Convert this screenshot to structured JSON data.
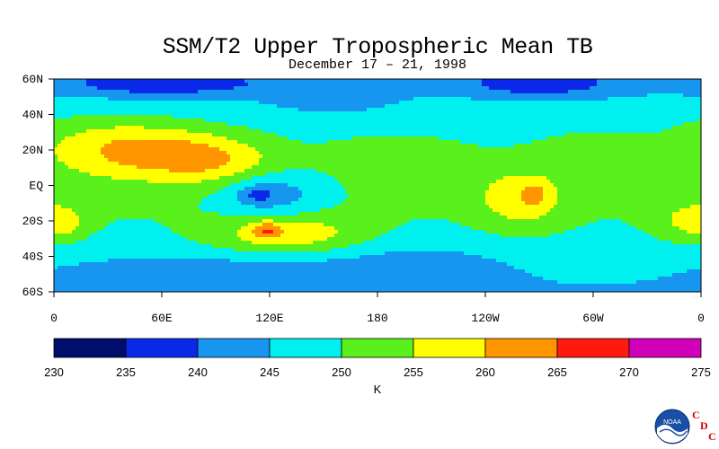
{
  "chart_data": {
    "type": "heatmap",
    "title": "SSM/T2 Upper Tropospheric Mean TB",
    "subtitle": "December 17 – 21, 1998",
    "y_ticks": [
      "60N",
      "40N",
      "20N",
      "EQ",
      "20S",
      "40S",
      "60S"
    ],
    "x_ticks": [
      "0",
      "60E",
      "120E",
      "180",
      "120W",
      "60W",
      "0"
    ],
    "colorbar": {
      "label": "K",
      "ticks": [
        230,
        235,
        240,
        245,
        250,
        255,
        260,
        265,
        270,
        275
      ],
      "bins": [
        {
          "min": 230,
          "max": 235,
          "color": "#000d6b"
        },
        {
          "min": 235,
          "max": 240,
          "color": "#0a28e8"
        },
        {
          "min": 240,
          "max": 245,
          "color": "#1796f0"
        },
        {
          "min": 245,
          "max": 250,
          "color": "#00f0f0"
        },
        {
          "min": 250,
          "max": 255,
          "color": "#5af01c"
        },
        {
          "min": 255,
          "max": 260,
          "color": "#ffff00"
        },
        {
          "min": 260,
          "max": 265,
          "color": "#ff9600"
        },
        {
          "min": 265,
          "max": 270,
          "color": "#ff1a10"
        },
        {
          "min": 270,
          "max": 275,
          "color": "#d000b8"
        }
      ]
    },
    "xlim": [
      0,
      360
    ],
    "ylim": [
      -60,
      60
    ]
  },
  "logo": {
    "letters": [
      "C",
      "D",
      "C"
    ]
  }
}
